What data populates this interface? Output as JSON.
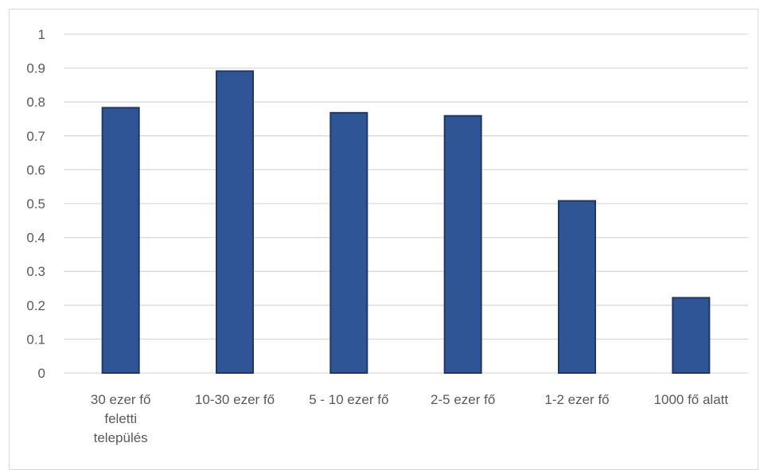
{
  "chart_data": {
    "type": "bar",
    "categories": [
      [
        "30 ezer fő",
        "feletti",
        "település"
      ],
      [
        "10-30 ezer fő"
      ],
      [
        "5 - 10 ezer fő"
      ],
      [
        "2-5 ezer fő"
      ],
      [
        "1-2 ezer fő"
      ],
      [
        "1000 fő alatt"
      ]
    ],
    "values": [
      0.783,
      0.891,
      0.768,
      0.759,
      0.508,
      0.222
    ],
    "yticks": [
      "0",
      "0.1",
      "0.2",
      "0.3",
      "0.4",
      "0.5",
      "0.6",
      "0.7",
      "0.8",
      "0.9",
      "1"
    ],
    "ylim": [
      0,
      1
    ],
    "grid": true,
    "legend": "none",
    "colors": {
      "bar_fill": "#2f5597",
      "bar_stroke": "#1f3864",
      "grid": "#d9d9d9",
      "text": "#595959"
    }
  }
}
